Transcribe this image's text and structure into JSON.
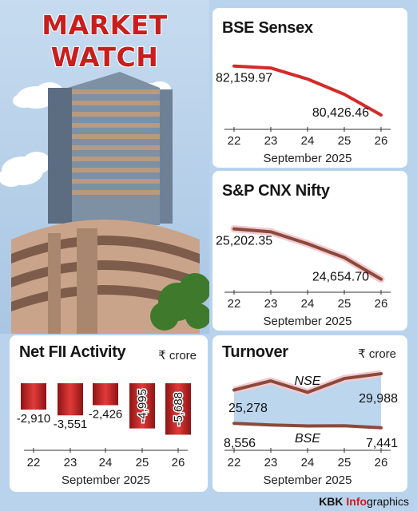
{
  "hero": {
    "title_line1": "MARKET",
    "title_line2": "WATCH"
  },
  "footer": {
    "brand": "KBK",
    "brand_accent": "Info",
    "brand_suffix": "graphics"
  },
  "colors": {
    "accent_red": "#d42a2a",
    "line_brown": "#8a4a3a",
    "fill_blue": "#bcd6ee"
  },
  "chart_data": [
    {
      "type": "line",
      "title": "BSE Sensex",
      "x": [
        "22",
        "23",
        "24",
        "25",
        "26"
      ],
      "xlabel": "September 2025",
      "series": [
        {
          "values": [
            82159.97,
            82090,
            81700,
            81160,
            80426.46
          ]
        }
      ],
      "labels": {
        "first": "82,159.97",
        "last": "80,426.46"
      },
      "ylim": [
        80200,
        82350
      ]
    },
    {
      "type": "line",
      "title": "S&P CNX Nifty",
      "x": [
        "22",
        "23",
        "24",
        "25",
        "26"
      ],
      "xlabel": "September 2025",
      "series": [
        {
          "values": [
            25202.35,
            25170,
            25040,
            24890,
            24654.7
          ]
        }
      ],
      "labels": {
        "first": "25,202.35",
        "last": "24,654.70"
      },
      "ylim": [
        24600,
        25260
      ]
    },
    {
      "type": "bar",
      "title": "Net FII Activity",
      "unit": "₹ crore",
      "categories": [
        "22",
        "23",
        "24",
        "25",
        "26"
      ],
      "values": [
        -2910,
        -3551,
        -2426,
        -4995,
        -5688
      ],
      "value_labels": [
        "-2,910",
        "-3,551",
        "-2,426",
        "-4,995",
        "-5,688"
      ],
      "xlabel": "September 2025",
      "ylim": [
        -6000,
        0
      ]
    },
    {
      "type": "line",
      "title": "Turnover",
      "unit": "₹ crore",
      "x": [
        "22",
        "23",
        "24",
        "25",
        "26"
      ],
      "xlabel": "September 2025",
      "series": [
        {
          "name": "NSE",
          "values": [
            25278,
            27900,
            24600,
            28600,
            29988
          ],
          "first_label": "25,278",
          "last_label": "29,988"
        },
        {
          "name": "BSE",
          "values": [
            8556,
            8150,
            7900,
            7950,
            7441
          ],
          "first_label": "8,556",
          "last_label": "7,441"
        }
      ]
    }
  ]
}
